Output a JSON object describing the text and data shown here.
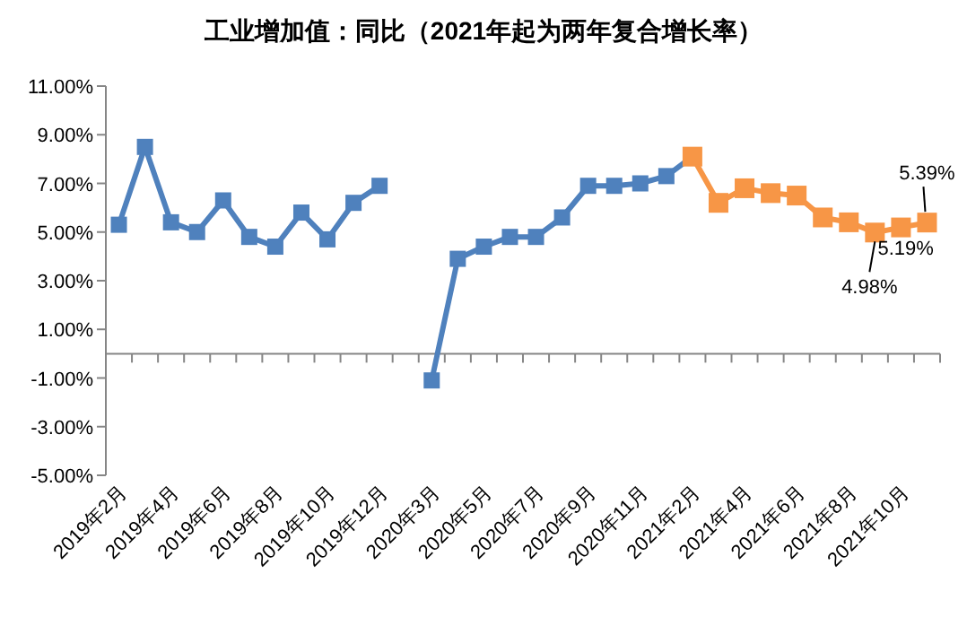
{
  "chart_data": {
    "type": "line",
    "title": "工业增加值：同比（2021年起为两年复合增长率）",
    "categories": [
      "2019年2月",
      null,
      "2019年4月",
      null,
      "2019年6月",
      null,
      "2019年8月",
      null,
      "2019年10月",
      null,
      "2019年12月",
      null,
      "2020年3月",
      null,
      "2020年5月",
      null,
      "2020年7月",
      null,
      "2020年9月",
      null,
      "2020年11月",
      null,
      "2021年2月",
      null,
      "2021年4月",
      null,
      "2021年6月",
      null,
      "2021年8月",
      null,
      "2021年10月",
      null
    ],
    "series": [
      {
        "color": "#4f81bd",
        "values": [
          5.3,
          8.5,
          5.4,
          5.0,
          6.3,
          4.8,
          4.4,
          5.8,
          4.7,
          6.2,
          6.9,
          null,
          -1.1,
          3.9,
          4.4,
          4.8,
          4.8,
          5.6,
          6.9,
          6.9,
          7.0,
          7.3,
          8.1,
          null,
          null,
          null,
          null,
          null,
          null,
          null,
          null,
          null
        ]
      },
      {
        "color": "#f79646",
        "values": [
          null,
          null,
          null,
          null,
          null,
          null,
          null,
          null,
          null,
          null,
          null,
          null,
          null,
          null,
          null,
          null,
          null,
          null,
          null,
          null,
          null,
          null,
          8.1,
          6.2,
          6.8,
          6.6,
          6.5,
          5.6,
          5.4,
          4.98,
          5.19,
          5.39
        ],
        "value_labels": [
          null,
          null,
          null,
          null,
          null,
          null,
          null,
          null,
          null,
          null,
          null,
          null,
          null,
          null,
          null,
          null,
          null,
          null,
          null,
          null,
          null,
          null,
          null,
          null,
          null,
          null,
          null,
          null,
          null,
          "4.98%",
          "5.19%",
          "5.39%"
        ]
      }
    ],
    "ylim": [
      -5,
      11
    ],
    "yticks": [
      {
        "value": -5,
        "label": "-5.00%"
      },
      {
        "value": -3,
        "label": "-3.00%"
      },
      {
        "value": -1,
        "label": "-1.00%"
      },
      {
        "value": 1,
        "label": "1.00%"
      },
      {
        "value": 3,
        "label": "3.00%"
      },
      {
        "value": 5,
        "label": "5.00%"
      },
      {
        "value": 7,
        "label": "7.00%"
      },
      {
        "value": 9,
        "label": "9.00%"
      },
      {
        "value": 11,
        "label": "11.00%"
      }
    ],
    "marker": "square",
    "grid": false
  }
}
